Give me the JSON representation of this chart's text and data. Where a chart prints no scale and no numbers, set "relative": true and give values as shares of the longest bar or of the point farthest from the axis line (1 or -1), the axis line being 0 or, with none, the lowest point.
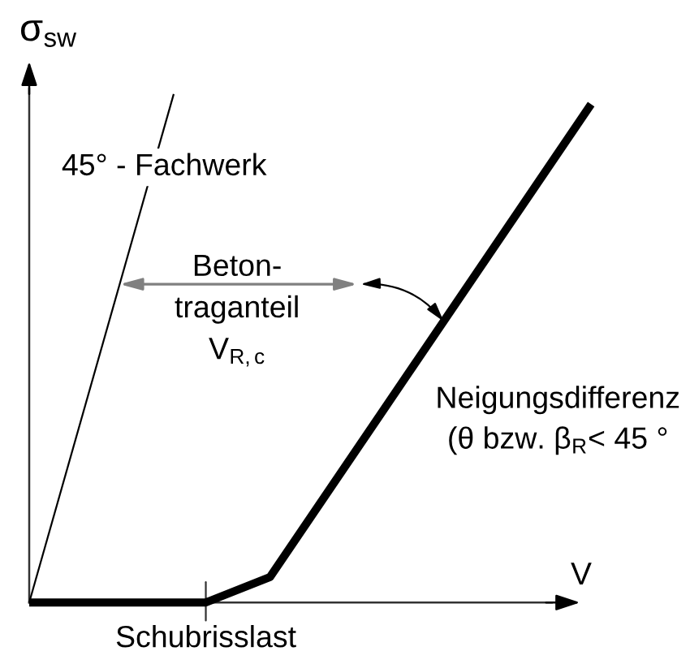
{
  "chart_data": {
    "type": "line",
    "relative": true,
    "xlabel": "V",
    "ylabel": "σ$_{sw}$",
    "categories": [
      null,
      null,
      null,
      null,
      null,
      null,
      null,
      null,
      null,
      null,
      null,
      null,
      null,
      null,
      null,
      null,
      null,
      null,
      null,
      null,
      null,
      null,
      null,
      null,
      null,
      null,
      null,
      null,
      null,
      null,
      null,
      null,
      null,
      null,
      null,
      null
    ],
    "series": [
      {
        "name": "45° - Fachwerk",
        "color": "#000000",
        "values": [
          0,
          null,
          null,
          null,
          null,
          null,
          null,
          null,
          null,
          1,
          null,
          null,
          null,
          null,
          null,
          null,
          null,
          null,
          null,
          null,
          null,
          null,
          null,
          null,
          null,
          null,
          null,
          null,
          null,
          null,
          null,
          null,
          null,
          null,
          null,
          null
        ]
      },
      {
        "name": "Neigungsdifferenz\n(θ bzw. β$_{R}$< 45 °",
        "color": "#000000",
        "values": [
          0,
          null,
          null,
          null,
          null,
          null,
          null,
          null,
          null,
          null,
          null,
          0,
          null,
          null,
          null,
          0.05,
          null,
          null,
          null,
          null,
          null,
          null,
          null,
          null,
          null,
          null,
          null,
          null,
          null,
          null,
          null,
          null,
          null,
          null,
          null,
          0.98
        ]
      }
    ],
    "annotations": [
      "Beton-\ntraganteil\nV$_{R,c}$",
      "Schubrisslast"
    ],
    "legend": false,
    "marker": "none",
    "line_style": "solid"
  }
}
